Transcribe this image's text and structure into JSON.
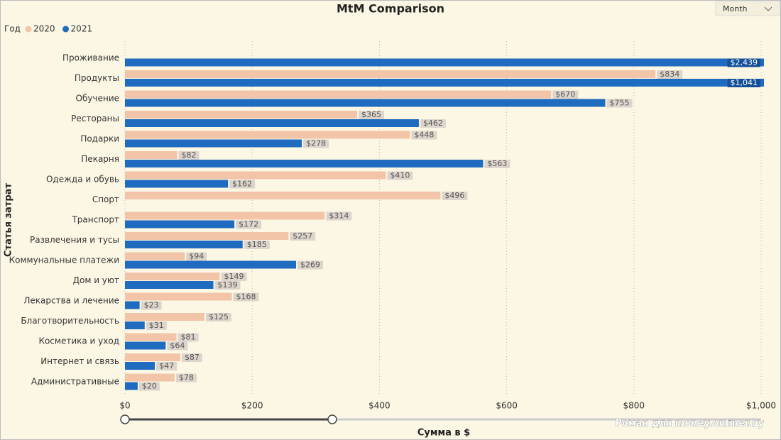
{
  "chart_data": {
    "type": "bar",
    "orientation": "horizontal",
    "title": "MtM Comparison",
    "legend_title": "Год",
    "slicer": "Month",
    "watermark": "Роман для money.onliner.by",
    "x_label": "Сумма в $",
    "y_label": "Статья затрат",
    "categories": [
      "Проживание",
      "Продукты",
      "Обучение",
      "Рестораны",
      "Подарки",
      "Пекарня",
      "Одежда и обувь",
      "Спорт",
      "Транспорт",
      "Развлечения и тусы",
      "Коммунальные платежи",
      "Дом и уют",
      "Лекарства и лечение",
      "Благотворительность",
      "Косметика и уход",
      "Интернет и связь",
      "Административные"
    ],
    "series": [
      {
        "name": "2020",
        "color": "#f2c4a8",
        "values": [
          null,
          834,
          670,
          365,
          448,
          82,
          410,
          496,
          314,
          257,
          94,
          149,
          168,
          125,
          81,
          87,
          78
        ],
        "value_labels": [
          null,
          "$834",
          "$670",
          "$365",
          "$448",
          "$82",
          "$410",
          "$496",
          "$314",
          "$257",
          "$94",
          "$149",
          "$168",
          "$125",
          "$81",
          "$87",
          "$78"
        ]
      },
      {
        "name": "2021",
        "color": "#1f6bbf",
        "values": [
          2439,
          1041,
          755,
          462,
          278,
          563,
          162,
          null,
          172,
          185,
          269,
          139,
          23,
          31,
          64,
          47,
          20
        ],
        "value_labels": [
          "$2,439",
          "$1,041",
          "$755",
          "$462",
          "$278",
          "$563",
          "$162",
          null,
          "$172",
          "$185",
          "$269",
          "$139",
          "$23",
          "$31",
          "$64",
          "$47",
          "$20"
        ]
      }
    ],
    "xlim": [
      0,
      1000
    ],
    "xticks": [
      {
        "value": 0,
        "label": "$0"
      },
      {
        "value": 200,
        "label": "$200"
      },
      {
        "value": 400,
        "label": "$400"
      },
      {
        "value": 600,
        "label": "$600"
      },
      {
        "value": 800,
        "label": "$800"
      },
      {
        "value": 1000,
        "label": "$1,000"
      }
    ],
    "grid": true,
    "legend": "top-left"
  }
}
